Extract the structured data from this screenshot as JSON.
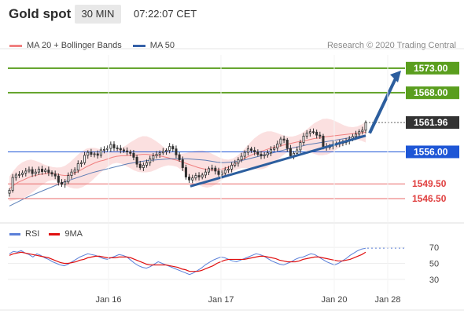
{
  "header": {
    "title": "Gold spot",
    "timeframe": "30 MIN",
    "time": "07:22:07 CET"
  },
  "legend": {
    "ma20_label": "MA 20 + Bollinger Bands",
    "ma50_label": "MA 50",
    "copyright": "Research © 2020 Trading Central"
  },
  "rsi_legend": {
    "rsi_label": "RSI",
    "ma_label": "9MA"
  },
  "colors": {
    "resistance": "#5a9e1e",
    "support": "#e86a6a",
    "current": "#333333",
    "pivot": "#1e56d6",
    "trend": "#2c5e9e",
    "ma50": "#3561a8",
    "bollinger": "#f7c7c7",
    "candle": "#2e2e2e",
    "rsi": "#5a7fd8",
    "rsi_ma": "#e01010"
  },
  "chart_data": [
    {
      "type": "candlestick",
      "title": "Gold spot",
      "ylim": [
        1543,
        1576
      ],
      "levels": [
        {
          "label": "1573.00",
          "value": 1573.0,
          "kind": "resistance"
        },
        {
          "label": "1568.00",
          "value": 1568.0,
          "kind": "resistance"
        },
        {
          "label": "1561.96",
          "value": 1561.96,
          "kind": "current"
        },
        {
          "label": "1556.00",
          "value": 1556.0,
          "kind": "pivot"
        },
        {
          "label": "1549.50",
          "value": 1549.5,
          "kind": "support"
        },
        {
          "label": "1546.50",
          "value": 1546.5,
          "kind": "support"
        }
      ],
      "x_ticks": [
        "Jan 16",
        "Jan 17",
        "Jan 20",
        "Jan 28"
      ],
      "close": [
        1548.2,
        1550.8,
        1551.3,
        1551.4,
        1551.7,
        1552.1,
        1552.4,
        1551.6,
        1551.9,
        1552.5,
        1552.0,
        1552.3,
        1551.8,
        1551.5,
        1551.1,
        1549.8,
        1549.4,
        1549.9,
        1551.2,
        1551.9,
        1552.3,
        1553.6,
        1553.8,
        1555.3,
        1555.9,
        1555.5,
        1555.6,
        1555.3,
        1556.4,
        1556.5,
        1556.7,
        1557.5,
        1556.8,
        1556.7,
        1556.4,
        1556.2,
        1556.0,
        1555.7,
        1554.9,
        1553.5,
        1552.8,
        1553.3,
        1553.8,
        1554.6,
        1555.2,
        1555.5,
        1555.8,
        1556.1,
        1556.3,
        1557.1,
        1556.6,
        1555.4,
        1554.4,
        1552.8,
        1550.9,
        1550.3,
        1550.7,
        1551.2,
        1550.9,
        1551.3,
        1551.9,
        1552.6,
        1552.7,
        1552.1,
        1551.4,
        1551.7,
        1552.3,
        1552.5,
        1553.3,
        1553.7,
        1554.4,
        1555.1,
        1555.9,
        1556.6,
        1556.3,
        1556.0,
        1555.5,
        1555.2,
        1555.4,
        1555.8,
        1556.5,
        1556.8,
        1557.6,
        1558.6,
        1558.4,
        1556.7,
        1555.2,
        1555.7,
        1556.4,
        1557.9,
        1559.2,
        1559.8,
        1560.1,
        1560.0,
        1559.4,
        1559.2,
        1557.1,
        1556.9,
        1557.2,
        1557.5,
        1557.6,
        1557.8,
        1557.9,
        1558.2,
        1558.6,
        1559.1,
        1559.6,
        1560.1,
        1560.4,
        1561.96
      ],
      "ma20": [
        1548.5,
        1549.2,
        1549.8,
        1550.2,
        1550.6,
        1551.0,
        1551.2,
        1551.4,
        1551.5,
        1551.6,
        1551.6,
        1551.5,
        1551.3,
        1551.2,
        1551.3,
        1551.6,
        1552.0,
        1552.5,
        1553.0,
        1553.4,
        1553.8,
        1554.1,
        1554.3,
        1554.6,
        1554.9,
        1555.1,
        1555.2,
        1555.2,
        1555.3,
        1555.3,
        1555.4,
        1555.5,
        1555.5,
        1555.4,
        1555.3,
        1555.2,
        1555.0,
        1554.8,
        1554.5,
        1554.3,
        1554.0,
        1553.7,
        1553.4,
        1553.1,
        1552.8,
        1552.6,
        1552.4,
        1552.3,
        1552.3,
        1552.4,
        1552.6,
        1552.9,
        1553.3,
        1553.8,
        1554.3,
        1554.8,
        1555.2,
        1555.6,
        1555.9,
        1556.2,
        1556.5,
        1556.8,
        1557.0,
        1557.2,
        1557.4,
        1557.6,
        1557.8,
        1558.0,
        1558.1,
        1558.3,
        1558.5,
        1558.7,
        1558.8,
        1559.0,
        1559.1,
        1559.2,
        1559.3,
        1559.4,
        1559.5,
        1559.6,
        1559.7,
        1559.8,
        1559.9,
        1560.0
      ],
      "ma50": [
        1545.0,
        1545.6,
        1546.2,
        1546.8,
        1547.3,
        1547.8,
        1548.3,
        1548.8,
        1549.3,
        1549.8,
        1550.2,
        1550.6,
        1551.0,
        1551.4,
        1551.8,
        1552.1,
        1552.4,
        1552.7,
        1553.0,
        1553.3,
        1553.6,
        1553.8,
        1554.0,
        1554.2,
        1554.3,
        1554.4,
        1554.5,
        1554.6,
        1554.6,
        1554.6,
        1554.6,
        1554.5,
        1554.4,
        1554.3,
        1554.1,
        1553.9,
        1553.8,
        1553.9,
        1554.0,
        1554.2,
        1554.5,
        1554.8,
        1555.1,
        1555.4,
        1555.7,
        1556.0,
        1556.3,
        1556.6,
        1556.9,
        1557.1,
        1557.4,
        1557.6,
        1557.8,
        1558.0,
        1558.2,
        1558.4,
        1558.6,
        1558.8,
        1559.0,
        1559.2,
        1559.4
      ],
      "trendline_start": 1549.0,
      "trendline_end": 1559.3,
      "projection": [
        1559.8,
        1572.5
      ]
    },
    {
      "type": "line",
      "title": "RSI",
      "ylim": [
        20,
        80
      ],
      "y_ticks": [
        70,
        50,
        30
      ],
      "series": [
        {
          "name": "RSI",
          "values": [
            62,
            65,
            64,
            66,
            63,
            61,
            58,
            62,
            60,
            57,
            55,
            52,
            50,
            48,
            47,
            49,
            52,
            55,
            58,
            60,
            62,
            61,
            60,
            58,
            56,
            55,
            57,
            59,
            61,
            60,
            58,
            54,
            50,
            47,
            45,
            44,
            46,
            49,
            52,
            50,
            48,
            46,
            44,
            42,
            40,
            38,
            36,
            38,
            41,
            44,
            48,
            51,
            54,
            56,
            58,
            57,
            55,
            53,
            52,
            54,
            56,
            58,
            60,
            62,
            61,
            59,
            56,
            53,
            51,
            49,
            48,
            50,
            52,
            55,
            57,
            58,
            60,
            62,
            61,
            58,
            55,
            52,
            50,
            48,
            50,
            53,
            56,
            60,
            63,
            66,
            68,
            69
          ]
        },
        {
          "name": "9MA",
          "values": [
            60,
            62,
            63,
            64,
            63,
            62,
            61,
            60,
            59,
            58,
            57,
            55,
            53,
            51,
            50,
            50,
            51,
            52,
            54,
            55,
            57,
            58,
            59,
            59,
            58,
            57,
            57,
            57,
            58,
            58,
            58,
            57,
            55,
            53,
            51,
            49,
            48,
            48,
            48,
            48,
            48,
            47,
            46,
            45,
            43,
            42,
            40,
            40,
            40,
            41,
            43,
            45,
            47,
            50,
            52,
            54,
            55,
            55,
            55,
            55,
            55,
            56,
            57,
            58,
            59,
            59,
            58,
            57,
            56,
            54,
            53,
            52,
            52,
            52,
            53,
            55,
            56,
            57,
            58,
            58,
            57,
            56,
            55,
            54,
            53,
            53,
            54,
            55,
            57,
            59,
            61,
            64
          ]
        }
      ]
    }
  ]
}
